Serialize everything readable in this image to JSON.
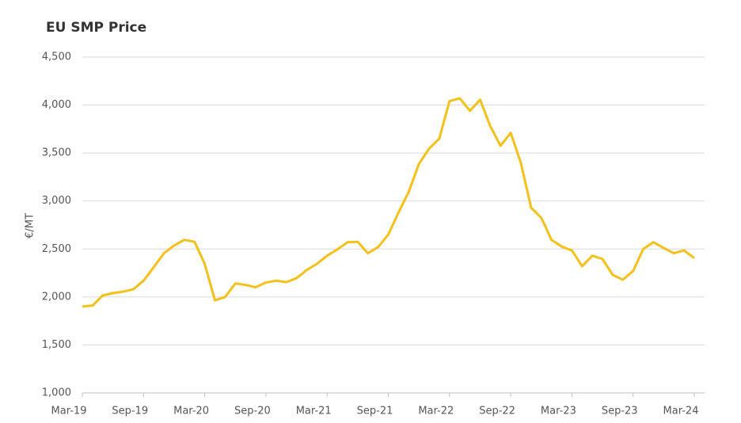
{
  "chart_data": {
    "type": "line",
    "title": "EU SMP Price",
    "y_label": "€/MT",
    "categories": [
      "Mar-19",
      null,
      null,
      null,
      null,
      null,
      "Sep-19",
      null,
      null,
      null,
      null,
      null,
      "Mar-20",
      null,
      null,
      null,
      null,
      null,
      "Sep-20",
      null,
      null,
      null,
      null,
      null,
      "Mar-21",
      null,
      null,
      null,
      null,
      null,
      "Sep-21",
      null,
      null,
      null,
      null,
      null,
      "Mar-22",
      null,
      null,
      null,
      null,
      null,
      "Sep-22",
      null,
      null,
      null,
      null,
      null,
      "Mar-23",
      null,
      null,
      null,
      null,
      null,
      "Sep-23",
      null,
      null,
      null,
      null,
      null,
      "Mar-24"
    ],
    "series": [
      {
        "name": "EU SMP Price",
        "color": "#f5c018",
        "values": [
          1900,
          1910,
          2015,
          2040,
          2055,
          2080,
          2170,
          2310,
          2455,
          2535,
          2595,
          2575,
          2345,
          1965,
          2000,
          2140,
          2125,
          2100,
          2150,
          2170,
          2155,
          2195,
          2280,
          2345,
          2430,
          2495,
          2570,
          2575,
          2455,
          2520,
          2650,
          2880,
          3095,
          3385,
          3545,
          3650,
          4040,
          4070,
          3940,
          4055,
          3780,
          3575,
          3710,
          3395,
          2930,
          2825,
          2595,
          2525,
          2485,
          2320,
          2430,
          2395,
          2230,
          2180,
          2270,
          2500,
          2570,
          2510,
          2455,
          2485,
          2405
        ]
      }
    ],
    "ylim": [
      1000,
      4500
    ],
    "yticks": [
      {
        "value": 1000,
        "label": "1,000"
      },
      {
        "value": 1500,
        "label": "1,500"
      },
      {
        "value": 2000,
        "label": "2,000"
      },
      {
        "value": 2500,
        "label": "2,500"
      },
      {
        "value": 3000,
        "label": "3,000"
      },
      {
        "value": 3500,
        "label": "3,500"
      },
      {
        "value": 4000,
        "label": "4,000"
      },
      {
        "value": 4500,
        "label": "4,500"
      }
    ],
    "grid": true
  }
}
